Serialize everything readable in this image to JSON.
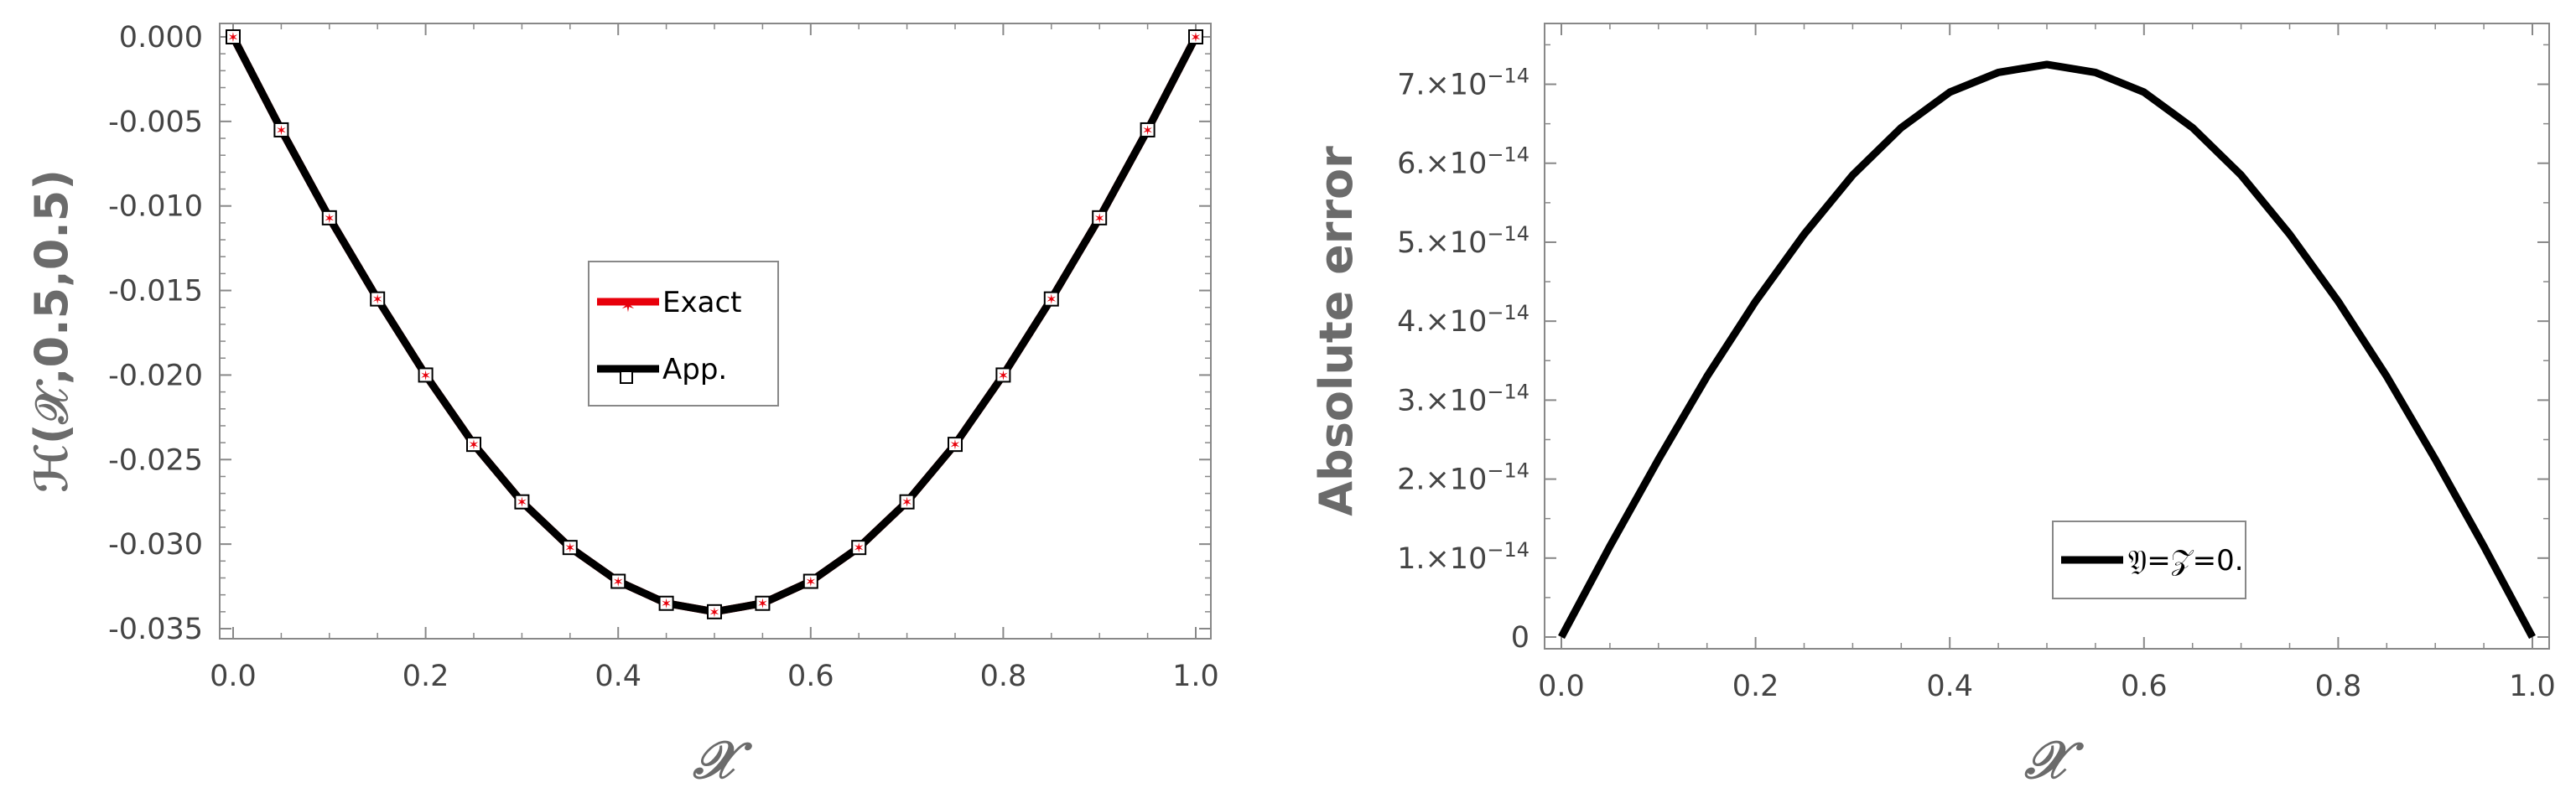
{
  "chart_data": [
    {
      "type": "line",
      "xlabel": "𝒳",
      "ylabel": "ℋ(𝒳,0.5,0.5)",
      "xlim": [
        0,
        1.0
      ],
      "ylim": [
        -0.035,
        0.0
      ],
      "x_ticks": [
        "0.0",
        "0.2",
        "0.4",
        "0.6",
        "0.8",
        "1.0"
      ],
      "y_ticks": [
        "0.000",
        "-0.005",
        "-0.010",
        "-0.015",
        "-0.020",
        "-0.025",
        "-0.030",
        "-0.035"
      ],
      "legend_position": "center",
      "series": [
        {
          "name": "Exact",
          "color": "#e8000b",
          "marker": "star",
          "x": [
            0,
            0.05,
            0.1,
            0.15,
            0.2,
            0.25,
            0.3,
            0.35,
            0.4,
            0.45,
            0.5,
            0.55,
            0.6,
            0.65,
            0.7,
            0.75,
            0.8,
            0.85,
            0.9,
            0.95,
            1.0
          ],
          "values": [
            0,
            -0.0055,
            -0.0107,
            -0.0155,
            -0.02,
            -0.0241,
            -0.0275,
            -0.0302,
            -0.0322,
            -0.0335,
            -0.034,
            -0.0335,
            -0.0322,
            -0.0302,
            -0.0275,
            -0.0241,
            -0.02,
            -0.0155,
            -0.0107,
            -0.0055,
            0
          ]
        },
        {
          "name": "App.",
          "color": "#000000",
          "marker": "open-square",
          "x": [
            0,
            0.05,
            0.1,
            0.15,
            0.2,
            0.25,
            0.3,
            0.35,
            0.4,
            0.45,
            0.5,
            0.55,
            0.6,
            0.65,
            0.7,
            0.75,
            0.8,
            0.85,
            0.9,
            0.95,
            1.0
          ],
          "values": [
            0,
            -0.0055,
            -0.0107,
            -0.0155,
            -0.02,
            -0.0241,
            -0.0275,
            -0.0302,
            -0.0322,
            -0.0335,
            -0.034,
            -0.0335,
            -0.0322,
            -0.0302,
            -0.0275,
            -0.0241,
            -0.02,
            -0.0155,
            -0.0107,
            -0.0055,
            0
          ]
        }
      ]
    },
    {
      "type": "line",
      "xlabel": "𝒳",
      "ylabel": "Absolute error",
      "xlim": [
        0,
        1.0
      ],
      "ylim": [
        0,
        7.6e-14
      ],
      "x_ticks": [
        "0.0",
        "0.2",
        "0.4",
        "0.6",
        "0.8",
        "1.0"
      ],
      "y_tick_values": [
        0,
        1e-14,
        2e-14,
        3e-14,
        4e-14,
        5e-14,
        6e-14,
        7e-14
      ],
      "y_tick_labels": [
        {
          "mantissa": "0",
          "exp": ""
        },
        {
          "mantissa": "1.×10",
          "exp": "−14"
        },
        {
          "mantissa": "2.×10",
          "exp": "−14"
        },
        {
          "mantissa": "3.×10",
          "exp": "−14"
        },
        {
          "mantissa": "4.×10",
          "exp": "−14"
        },
        {
          "mantissa": "5.×10",
          "exp": "−14"
        },
        {
          "mantissa": "6.×10",
          "exp": "−14"
        },
        {
          "mantissa": "7.×10",
          "exp": "−14"
        }
      ],
      "legend_position": "bottom-right",
      "series": [
        {
          "name": "𝔜=𝒵=0.",
          "color": "#000000",
          "x": [
            0,
            0.05,
            0.1,
            0.15,
            0.2,
            0.25,
            0.3,
            0.35,
            0.4,
            0.45,
            0.5,
            0.55,
            0.6,
            0.65,
            0.7,
            0.75,
            0.8,
            0.85,
            0.9,
            0.95,
            1.0
          ],
          "values": [
            0,
            1.15e-14,
            2.25e-14,
            3.3e-14,
            4.25e-14,
            5.1e-14,
            5.85e-14,
            6.45e-14,
            6.9e-14,
            7.15e-14,
            7.25e-14,
            7.15e-14,
            6.9e-14,
            6.45e-14,
            5.85e-14,
            5.1e-14,
            4.25e-14,
            3.3e-14,
            2.25e-14,
            1.15e-14,
            0
          ]
        }
      ]
    }
  ]
}
